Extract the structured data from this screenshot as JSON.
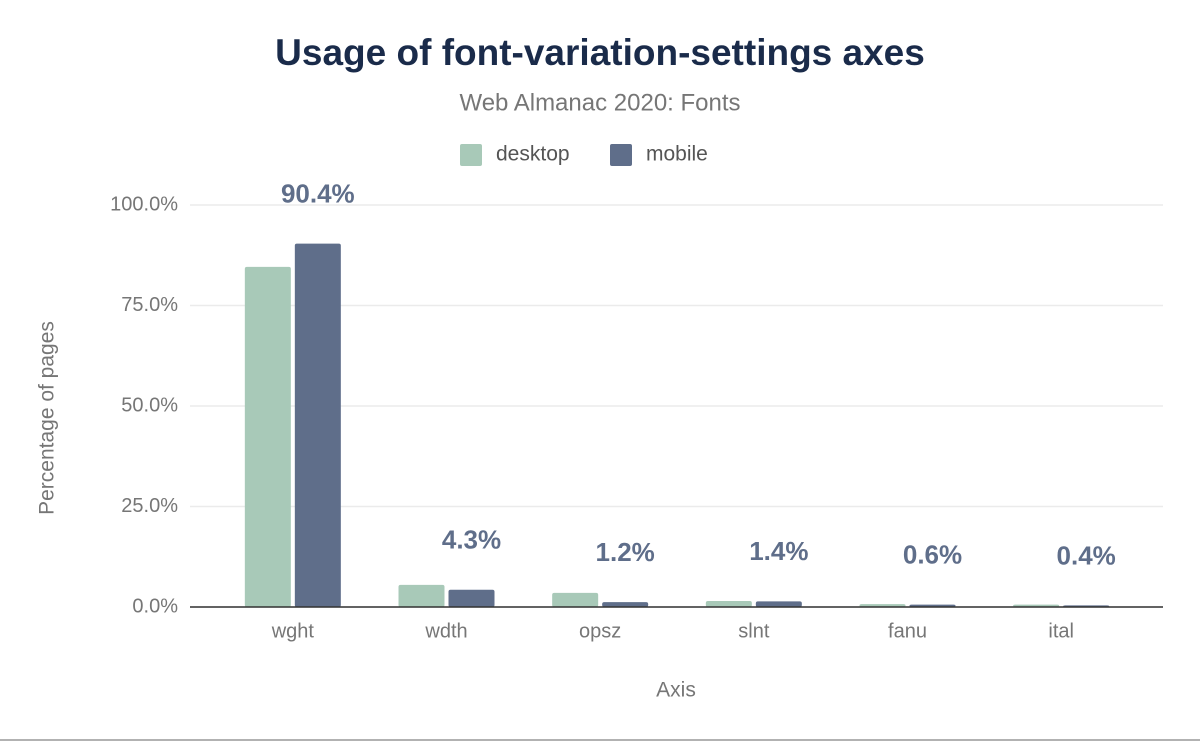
{
  "chart_data": {
    "type": "bar",
    "title": "Usage of font-variation-settings axes",
    "subtitle": "Web Almanac 2020: Fonts",
    "x_label": "Axis",
    "y_label": "Percentage of pages",
    "categories": [
      "wght",
      "wdth",
      "opsz",
      "slnt",
      "fanu",
      "ital"
    ],
    "series": [
      {
        "name": "desktop",
        "color": "#a8c9b8",
        "values": [
          84.6,
          5.5,
          3.5,
          1.5,
          0.7,
          0.6
        ]
      },
      {
        "name": "mobile",
        "color": "#5f6e8a",
        "values": [
          90.4,
          4.3,
          1.2,
          1.4,
          0.6,
          0.4
        ],
        "value_labels": [
          "90.4%",
          "4.3%",
          "1.2%",
          "1.4%",
          "0.6%",
          "0.4%"
        ]
      }
    ],
    "ylim": [
      0,
      100
    ],
    "yticks": [
      {
        "value": 0,
        "label": "0.0%"
      },
      {
        "value": 25,
        "label": "25.0%"
      },
      {
        "value": 50,
        "label": "50.0%"
      },
      {
        "value": 75,
        "label": "75.0%"
      },
      {
        "value": 100,
        "label": "100.0%"
      }
    ],
    "grid": true,
    "legend": "top"
  }
}
